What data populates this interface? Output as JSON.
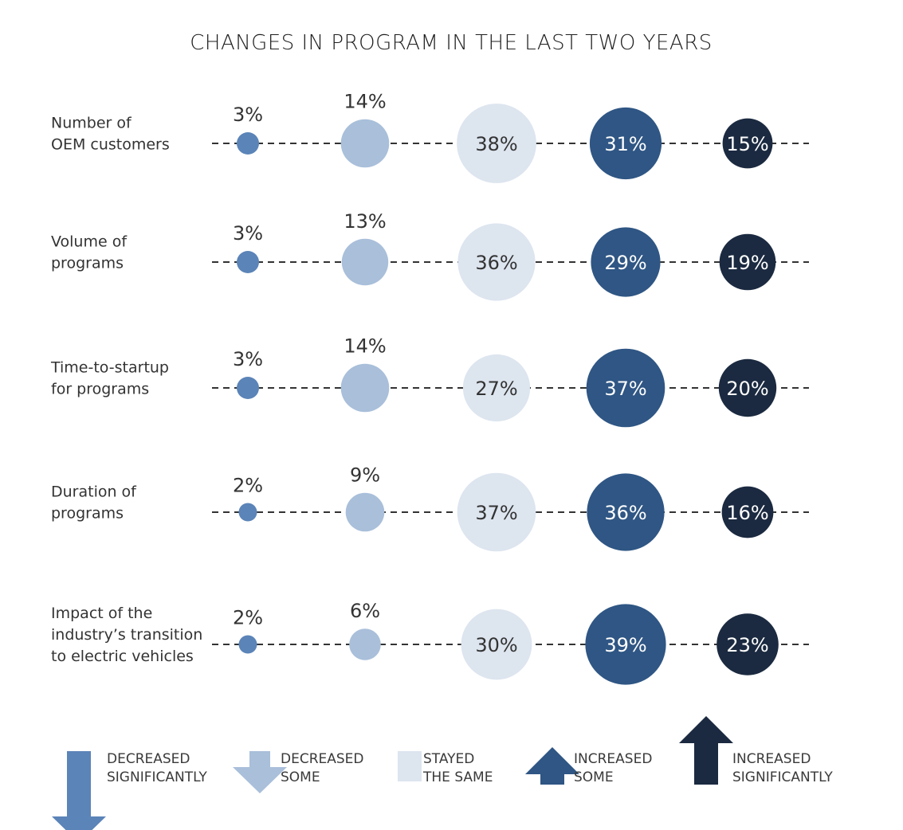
{
  "chart_data": {
    "type": "bubble",
    "title": "CHANGES IN PROGRAM IN THE LAST TWO YEARS",
    "colors": {
      "decreased_significantly": "#5b84b8",
      "decreased_some": "#a9bfda",
      "stayed_the_same": "#dde5ef",
      "increased_some": "#2f5684",
      "increased_significantly": "#1b2a40"
    },
    "categories": [
      {
        "key": "decreased_significantly",
        "label_lines": [
          "DECREASED",
          "SIGNIFICANTLY"
        ],
        "icon": "arrow-down-icon"
      },
      {
        "key": "decreased_some",
        "label_lines": [
          "DECREASED",
          "SOME"
        ],
        "icon": "arrow-down-icon"
      },
      {
        "key": "stayed_the_same",
        "label_lines": [
          "STAYED",
          "THE SAME"
        ],
        "icon": "square-icon"
      },
      {
        "key": "increased_some",
        "label_lines": [
          "INCREASED",
          "SOME"
        ],
        "icon": "arrow-up-icon"
      },
      {
        "key": "increased_significantly",
        "label_lines": [
          "INCREASED",
          "SIGNIFICANTLY"
        ],
        "icon": "arrow-up-icon"
      }
    ],
    "rows": [
      {
        "label_lines": [
          "Number of",
          "OEM customers"
        ],
        "values": [
          3,
          14,
          38,
          31,
          15
        ]
      },
      {
        "label_lines": [
          "Volume of",
          "programs"
        ],
        "values": [
          3,
          13,
          36,
          29,
          19
        ]
      },
      {
        "label_lines": [
          "Time-to-startup",
          "for programs"
        ],
        "values": [
          3,
          14,
          27,
          37,
          20
        ]
      },
      {
        "label_lines": [
          "Duration of",
          "programs"
        ],
        "values": [
          2,
          9,
          37,
          36,
          16
        ]
      },
      {
        "label_lines": [
          "Impact of the",
          "industry’s transition",
          "to electric vehicles"
        ],
        "values": [
          2,
          6,
          30,
          39,
          23
        ]
      }
    ],
    "value_suffix": "%"
  }
}
